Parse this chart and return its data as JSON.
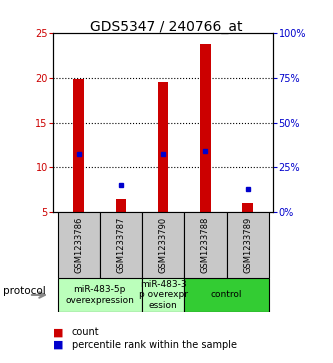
{
  "title": "GDS5347 / 240766_at",
  "samples": [
    "GSM1233786",
    "GSM1233787",
    "GSM1233790",
    "GSM1233788",
    "GSM1233789"
  ],
  "count_values": [
    19.8,
    6.5,
    19.5,
    23.7,
    6.0
  ],
  "percentile_values": [
    11.5,
    8.1,
    11.5,
    11.8,
    7.6
  ],
  "bar_bottom": 5.0,
  "ylim_left": [
    5,
    25
  ],
  "ylim_right": [
    0,
    100
  ],
  "yticks_left": [
    5,
    10,
    15,
    20,
    25
  ],
  "yticks_right": [
    0,
    25,
    50,
    75,
    100
  ],
  "ytick_labels_right": [
    "0%",
    "25%",
    "50%",
    "75%",
    "100%"
  ],
  "bar_color": "#cc0000",
  "percentile_color": "#0000cc",
  "bar_width": 0.25,
  "group_spans": [
    [
      -0.5,
      1.5,
      "#bbffbb",
      "miR-483-5p\noverexpression"
    ],
    [
      1.5,
      2.5,
      "#bbffbb",
      "miR-483-3\np overexpr\nession"
    ],
    [
      2.5,
      4.5,
      "#33cc33",
      "control"
    ]
  ],
  "protocol_label": "protocol",
  "legend_count_label": "count",
  "legend_percentile_label": "percentile rank within the sample",
  "title_fontsize": 10,
  "tick_fontsize": 7,
  "sample_fontsize": 6,
  "proto_fontsize": 6.5,
  "legend_fontsize": 7
}
